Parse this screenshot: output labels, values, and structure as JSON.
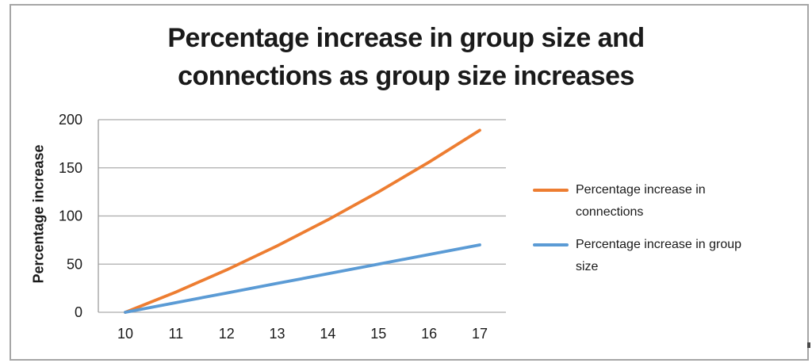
{
  "chart_data": {
    "type": "line",
    "title": "Percentage increase in group size and connections as group size increases",
    "title_lines": [
      "Percentage increase in group size and",
      "connections as group size increases"
    ],
    "xlabel": "",
    "ylabel": "Percentage increase",
    "categories": [
      "10",
      "11",
      "12",
      "13",
      "14",
      "15",
      "16",
      "17"
    ],
    "ylim": [
      0,
      200
    ],
    "yticks": [
      0,
      50,
      100,
      150,
      200
    ],
    "grid": true,
    "legend_position": "right",
    "series": [
      {
        "name": "Percentage increase in connections",
        "color": "#ED7D31",
        "values": [
          0,
          21,
          44,
          69,
          96,
          125,
          156,
          189
        ]
      },
      {
        "name": "Percentage increase in group size",
        "color": "#5B9BD5",
        "values": [
          0,
          10,
          20,
          30,
          40,
          50,
          60,
          70
        ]
      }
    ]
  },
  "colors": {
    "frame_border": "#a6a6a6",
    "gridline": "#ababab",
    "axis_line": "#9e9e9e",
    "text": "#1a1a1a"
  }
}
